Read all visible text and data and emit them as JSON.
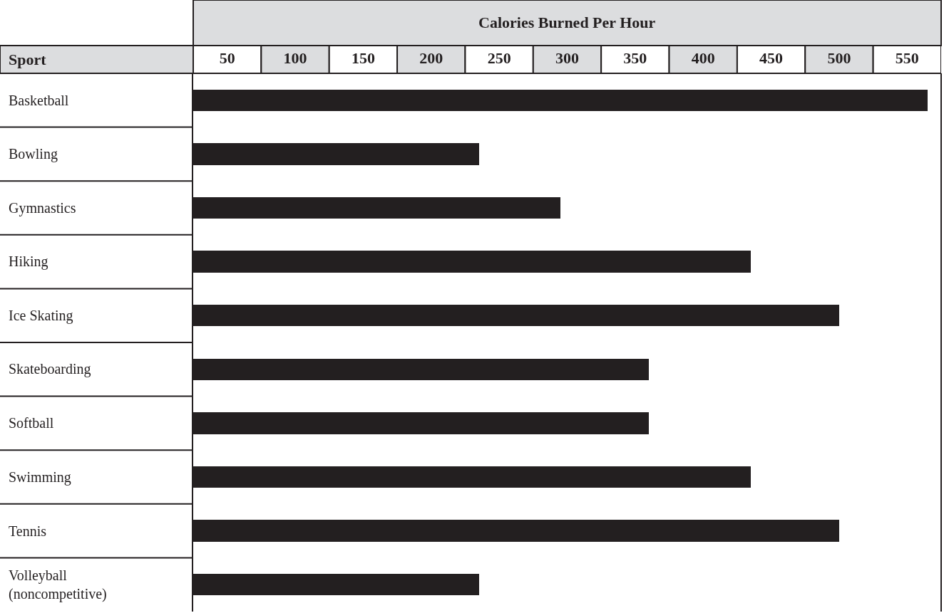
{
  "chart_data": {
    "type": "bar",
    "orientation": "horizontal",
    "xlabel": "Calories Burned Per Hour",
    "ylabel": "Sport",
    "categories": [
      "Basketball",
      "Bowling",
      "Gymnastics",
      "Hiking",
      "Ice Skating",
      "Skateboarding",
      "Softball",
      "Swimming",
      "Tennis",
      "Volleyball (noncompetitive)"
    ],
    "values": [
      565,
      235,
      295,
      435,
      500,
      360,
      360,
      435,
      500,
      235
    ],
    "color": "#231f20",
    "xlim": [
      25,
      575
    ],
    "xticks": [
      50,
      100,
      150,
      200,
      250,
      300,
      350,
      400,
      450,
      500,
      550
    ],
    "grid": false
  }
}
